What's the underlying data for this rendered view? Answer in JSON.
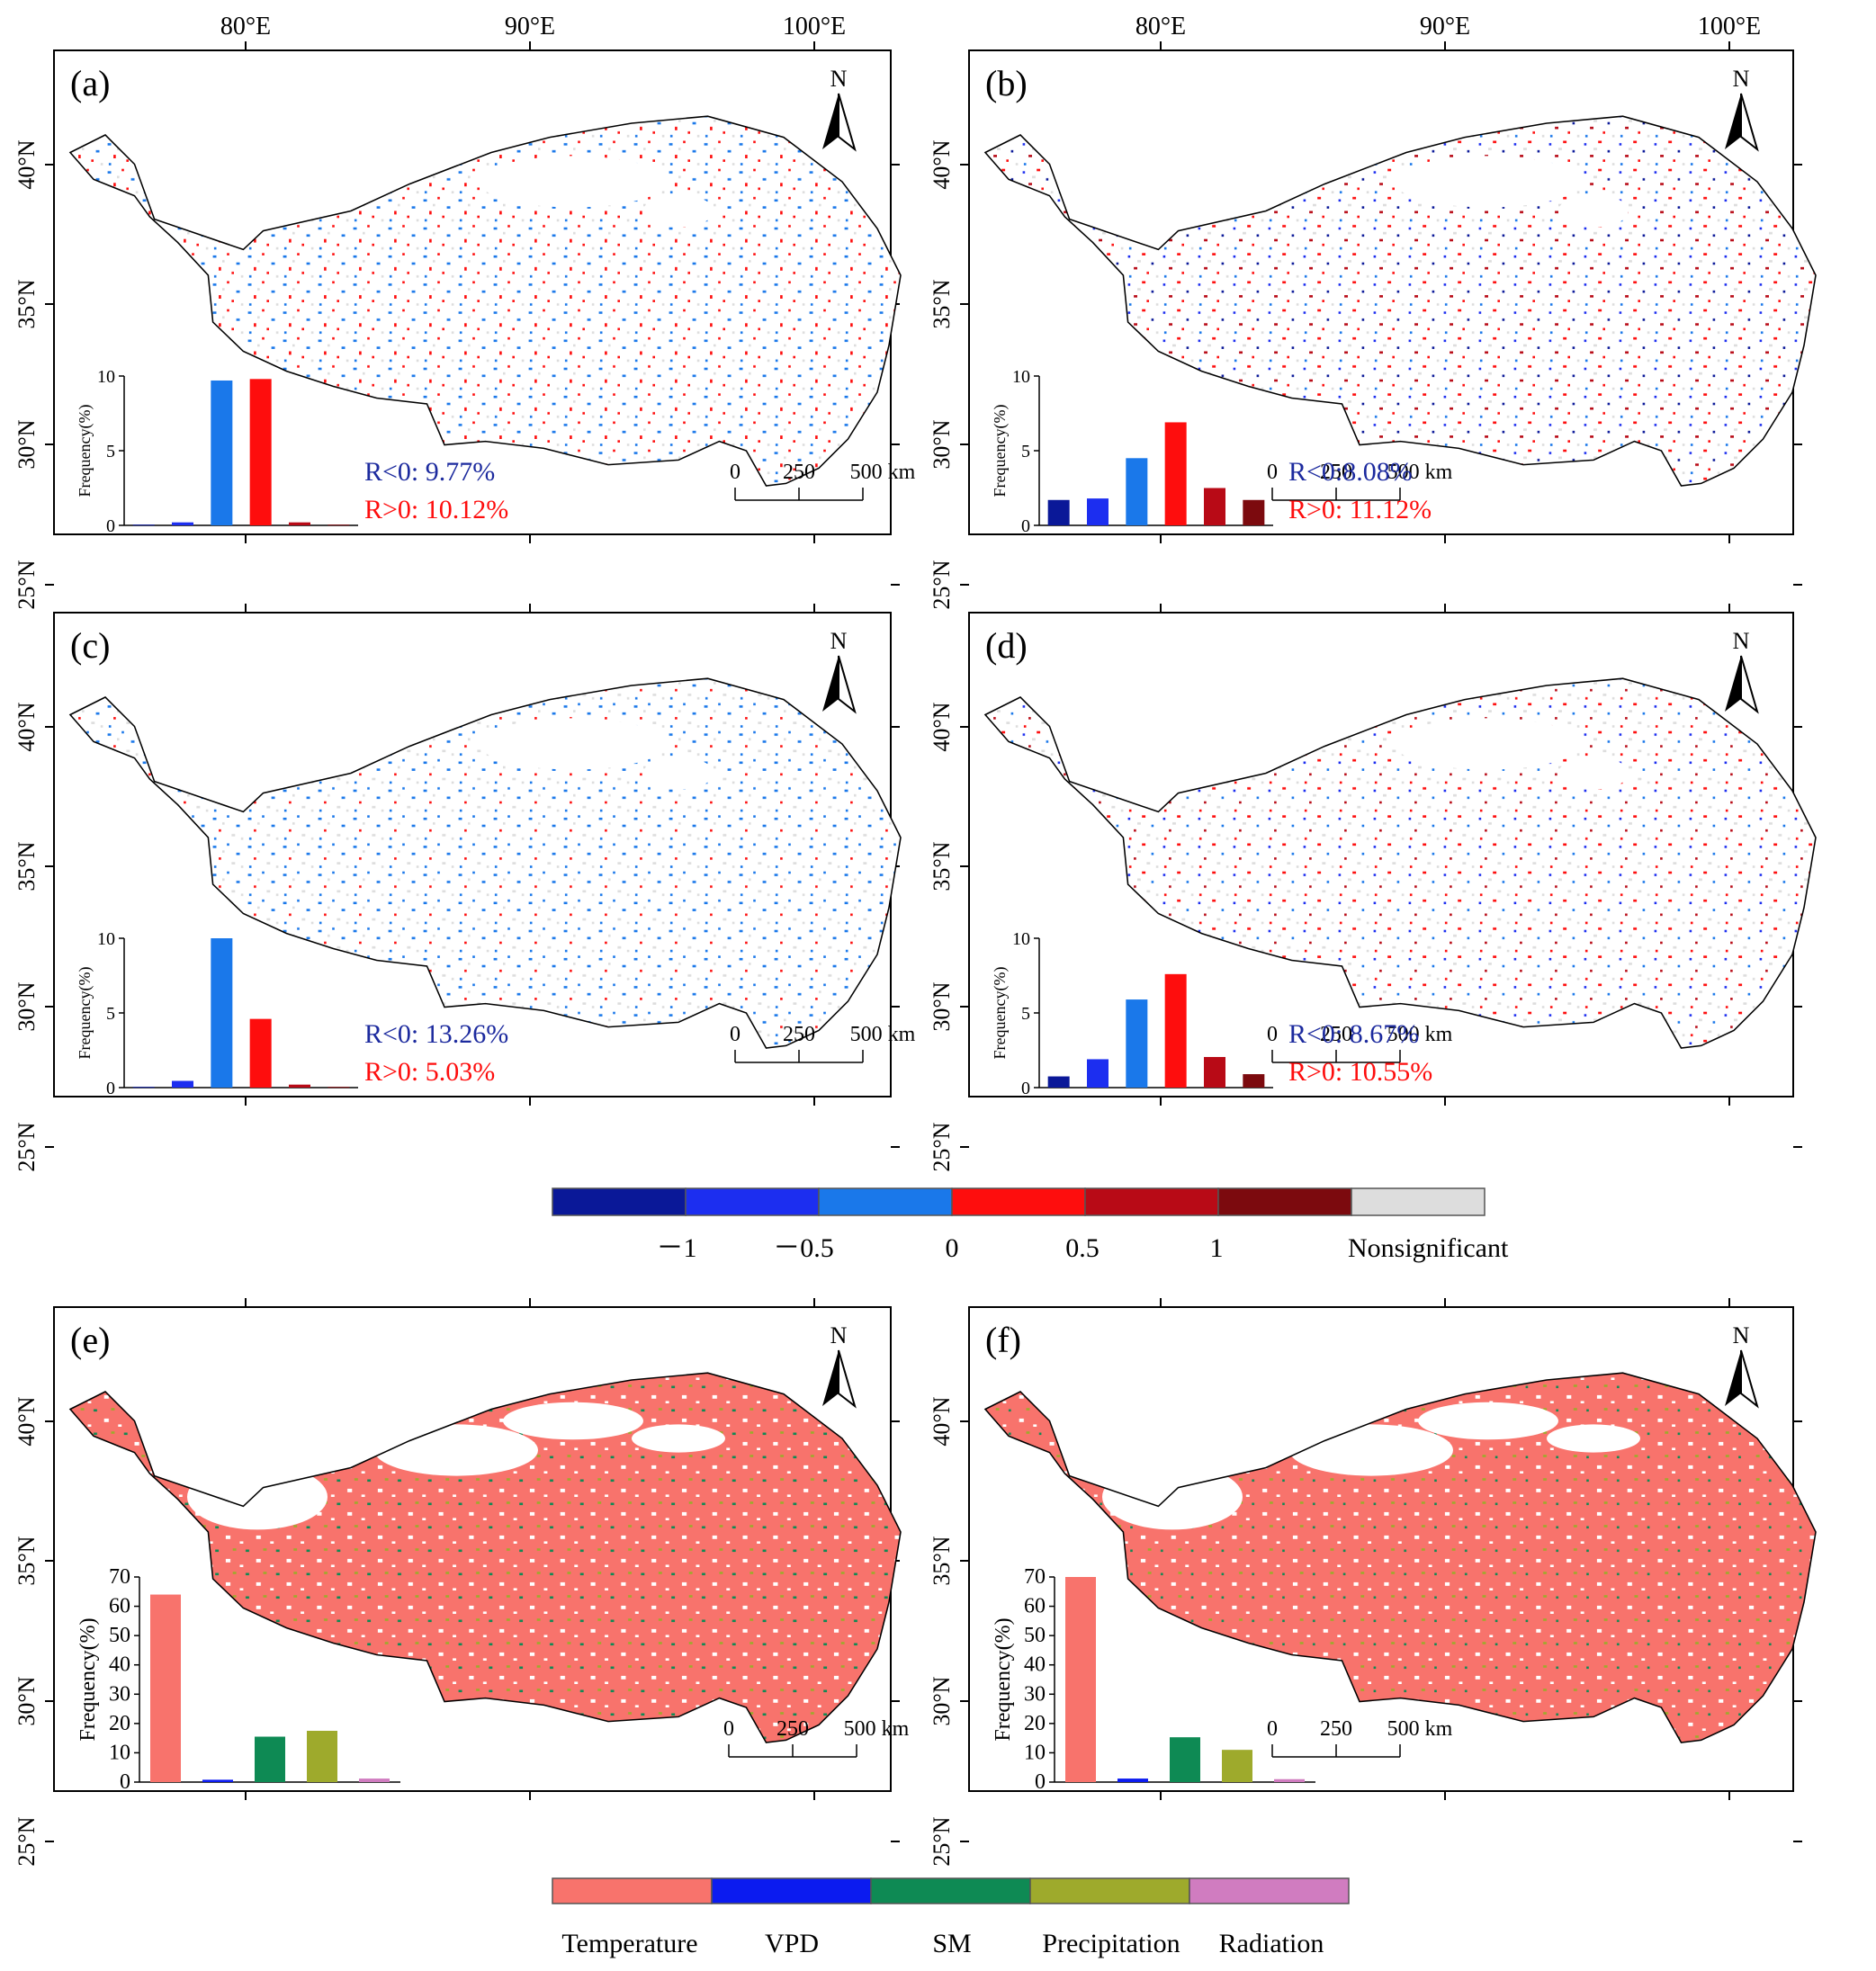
{
  "top_axis_labels": [
    "80°E",
    "90°E",
    "100°E"
  ],
  "lat_labels": [
    "40°N",
    "35°N",
    "30°N",
    "25°N"
  ],
  "north_symbol": "N",
  "scale_bar": {
    "labels": [
      "0",
      "250",
      "500 km"
    ]
  },
  "hist_ylabel": "Frequency(%)",
  "colors": {
    "corr": [
      "#0a1898",
      "#1c2ef0",
      "#1a78ea",
      "#fe0d0d",
      "#b80a16",
      "#7c0a0e"
    ],
    "nonsig": "#dddddd",
    "driver": [
      "#f8736c",
      "#0b1bf0",
      "#0e8a54",
      "#9eaa2c",
      "#d07cc0"
    ]
  },
  "panels": [
    {
      "id": "a",
      "label": "(a)",
      "type": "corr",
      "yticks": [
        "0",
        "5",
        "10"
      ],
      "ymax": 10,
      "values": [
        0.05,
        0.2,
        9.7,
        9.8,
        0.2,
        0.05
      ],
      "stat_neg": "R<0: 9.77%",
      "stat_pos": "R>0: 10.12%"
    },
    {
      "id": "b",
      "label": "(b)",
      "type": "corr",
      "yticks": [
        "0",
        "5",
        "10"
      ],
      "ymax": 10,
      "values": [
        1.7,
        1.8,
        4.5,
        6.9,
        2.5,
        1.7
      ],
      "stat_neg": "R<0:8.08%",
      "stat_pos": "R>0: 11.12%"
    },
    {
      "id": "c",
      "label": "(c)",
      "type": "corr",
      "yticks": [
        "0",
        "5",
        "10"
      ],
      "ymax": 10,
      "values": [
        0.05,
        0.45,
        10.0,
        4.6,
        0.2,
        0.05
      ],
      "stat_neg": "R<0: 13.26%",
      "stat_pos": "R>0: 5.03%"
    },
    {
      "id": "d",
      "label": "(d)",
      "type": "corr",
      "yticks": [
        "0",
        "5",
        "10"
      ],
      "ymax": 10,
      "values": [
        0.75,
        1.9,
        5.9,
        7.6,
        2.05,
        0.9
      ],
      "stat_neg": "R<0: 8.67%",
      "stat_pos": "R>0: 10.55%"
    },
    {
      "id": "e",
      "label": "(e)",
      "type": "driver",
      "yticks": [
        "0",
        "10",
        "20",
        "30",
        "40",
        "50",
        "60",
        "70"
      ],
      "ymax": 70,
      "values": [
        64,
        0.8,
        15.5,
        17.5,
        1.2
      ],
      "stat_neg": "",
      "stat_pos": ""
    },
    {
      "id": "f",
      "label": "(f)",
      "type": "driver",
      "yticks": [
        "0",
        "10",
        "20",
        "30",
        "40",
        "50",
        "60",
        "70"
      ],
      "ymax": 70,
      "values": [
        70,
        1.2,
        15.3,
        11,
        1.0
      ],
      "stat_neg": "",
      "stat_pos": ""
    }
  ],
  "corr_legend": {
    "ticks": [
      "－1",
      "－0.5",
      "0",
      "0.5",
      "1"
    ],
    "nonsig_label": "Nonsignificant"
  },
  "driver_legend": {
    "labels": [
      "Temperature",
      "VPD",
      "SM",
      "Precipitation",
      "Radiation"
    ]
  }
}
